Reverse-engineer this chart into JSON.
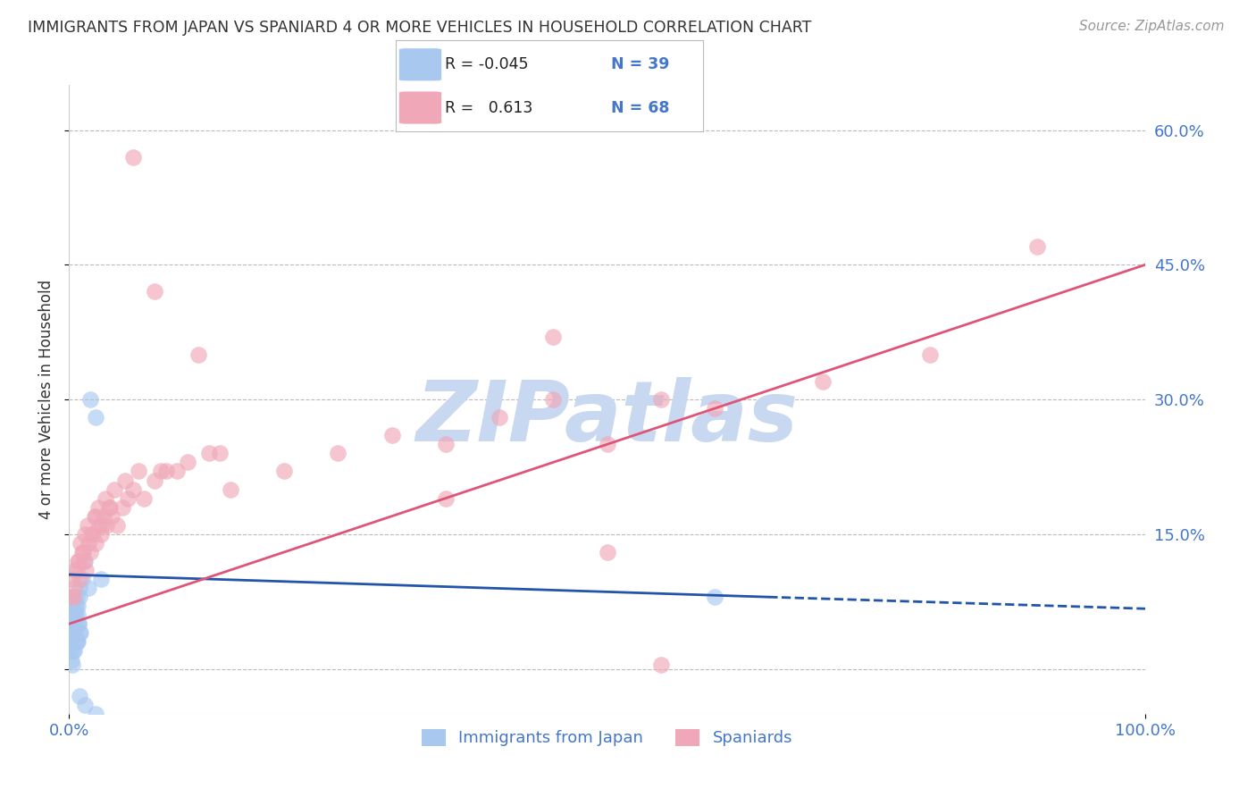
{
  "title": "IMMIGRANTS FROM JAPAN VS SPANIARD 4 OR MORE VEHICLES IN HOUSEHOLD CORRELATION CHART",
  "source": "Source: ZipAtlas.com",
  "ylabel": "4 or more Vehicles in Household",
  "xlim": [
    0.0,
    100.0
  ],
  "ylim": [
    -5.0,
    65.0
  ],
  "color_blue": "#a8c8f0",
  "color_pink": "#f0a8b8",
  "color_blue_line": "#2255aa",
  "color_pink_line": "#dd5577",
  "watermark": "ZIPatlas",
  "watermark_color": "#c8d8f0",
  "background_color": "#ffffff",
  "grid_color": "#bbbbbb",
  "axis_label_color": "#4477cc",
  "title_color": "#333333",
  "japan_x": [
    0.1,
    0.2,
    0.3,
    0.4,
    0.5,
    0.6,
    0.7,
    0.8,
    0.9,
    1.0,
    0.2,
    0.3,
    0.4,
    0.5,
    0.6,
    0.7,
    0.8,
    0.9,
    1.0,
    1.1,
    0.15,
    0.25,
    0.35,
    0.45,
    0.55,
    0.65,
    0.75,
    0.85,
    0.95,
    1.2,
    1.5,
    2.0,
    2.5,
    3.0,
    1.8,
    1.0,
    1.5,
    2.5,
    60.0
  ],
  "japan_y": [
    3.0,
    5.0,
    7.0,
    4.0,
    2.0,
    6.0,
    8.0,
    3.0,
    5.0,
    9.0,
    1.0,
    0.5,
    2.0,
    4.0,
    6.0,
    3.0,
    7.0,
    5.0,
    8.0,
    4.0,
    2.0,
    6.0,
    4.0,
    8.0,
    5.0,
    7.0,
    3.0,
    6.0,
    4.0,
    10.0,
    12.0,
    30.0,
    28.0,
    10.0,
    9.0,
    -3.0,
    -4.0,
    -5.0,
    8.0
  ],
  "spaniard_x": [
    0.2,
    0.3,
    0.5,
    0.7,
    0.8,
    1.0,
    1.2,
    1.4,
    1.6,
    1.8,
    2.0,
    2.2,
    2.5,
    2.8,
    3.0,
    3.2,
    3.5,
    3.8,
    4.0,
    4.5,
    5.0,
    5.5,
    6.0,
    7.0,
    8.0,
    9.0,
    10.0,
    12.0,
    14.0,
    0.4,
    0.6,
    0.9,
    1.1,
    1.3,
    1.5,
    1.7,
    2.1,
    2.4,
    2.7,
    3.1,
    3.4,
    3.7,
    4.2,
    5.2,
    6.5,
    8.5,
    11.0,
    13.0,
    15.0,
    20.0,
    25.0,
    30.0,
    35.0,
    40.0,
    45.0,
    50.0,
    55.0,
    60.0,
    70.0,
    80.0,
    90.0,
    45.0,
    50.0,
    35.0,
    55.0,
    6.0,
    8.0,
    2.5
  ],
  "spaniard_y": [
    8.0,
    10.0,
    9.0,
    11.0,
    12.0,
    10.0,
    13.0,
    12.0,
    11.0,
    14.0,
    13.0,
    15.0,
    14.0,
    16.0,
    15.0,
    17.0,
    16.0,
    18.0,
    17.0,
    16.0,
    18.0,
    19.0,
    20.0,
    19.0,
    21.0,
    22.0,
    22.0,
    35.0,
    24.0,
    8.0,
    11.0,
    12.0,
    14.0,
    13.0,
    15.0,
    16.0,
    15.0,
    17.0,
    18.0,
    16.0,
    19.0,
    18.0,
    20.0,
    21.0,
    22.0,
    22.0,
    23.0,
    24.0,
    20.0,
    22.0,
    24.0,
    26.0,
    25.0,
    28.0,
    30.0,
    25.0,
    30.0,
    29.0,
    32.0,
    35.0,
    47.0,
    37.0,
    13.0,
    19.0,
    0.5,
    57.0,
    42.0,
    17.0
  ],
  "blue_line_x0": 0.0,
  "blue_line_y0": 10.5,
  "blue_line_x1": 65.0,
  "blue_line_y1": 8.0,
  "blue_dash_x0": 65.0,
  "blue_dash_y0": 8.0,
  "blue_dash_x1": 100.0,
  "blue_dash_y1": 6.7,
  "pink_line_x0": 0.0,
  "pink_line_y0": 5.0,
  "pink_line_x1": 100.0,
  "pink_line_y1": 45.0,
  "legend_r1": "R = -0.045",
  "legend_n1": "N = 39",
  "legend_r2": "R =  0.613",
  "legend_n2": "N = 68",
  "legend_label1": "Immigrants from Japan",
  "legend_label2": "Spaniards"
}
